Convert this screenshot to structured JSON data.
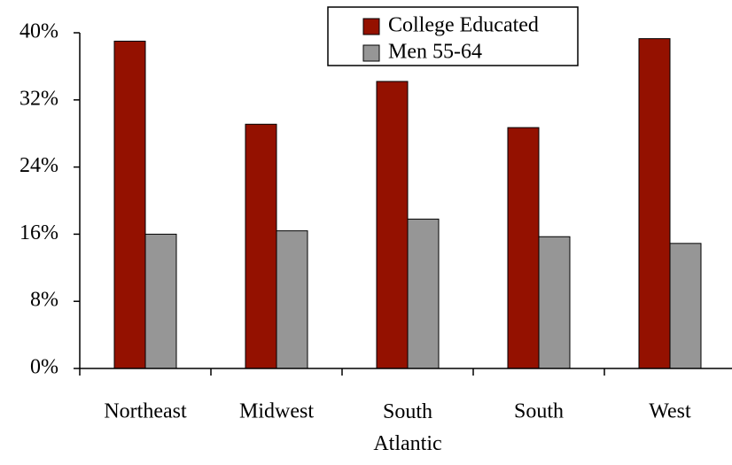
{
  "chart_data": {
    "type": "bar",
    "categories": [
      "Northeast",
      "Midwest",
      "South Atlantic",
      "South",
      "West"
    ],
    "series": [
      {
        "name": "College Educated",
        "color": "#941100",
        "values": [
          39,
          29.1,
          34.2,
          28.7,
          39.3
        ]
      },
      {
        "name": "Men 55-64",
        "color": "#969696",
        "values": [
          16,
          16.4,
          17.8,
          15.7,
          14.9
        ]
      }
    ],
    "ylim": [
      0,
      40
    ],
    "yticks": [
      {
        "value": 0,
        "label": "0%"
      },
      {
        "value": 8,
        "label": "8%"
      },
      {
        "value": 16,
        "label": "16%"
      },
      {
        "value": 24,
        "label": "24%"
      },
      {
        "value": 32,
        "label": "32%"
      },
      {
        "value": 40,
        "label": "40%"
      }
    ],
    "legend": "top"
  }
}
